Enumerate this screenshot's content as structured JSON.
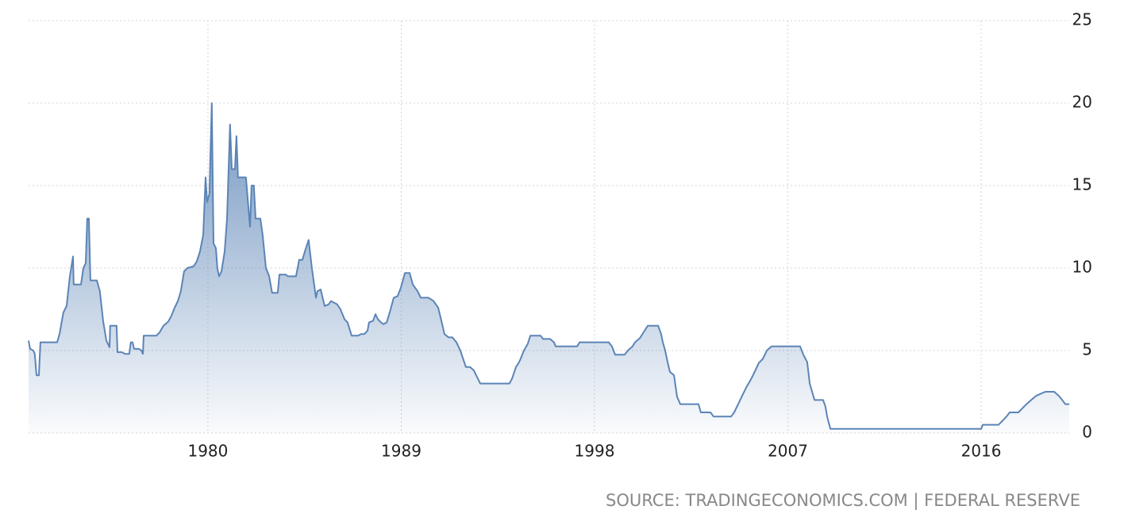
{
  "chart_data": {
    "type": "area",
    "source": "SOURCE: TRADINGECONOMICS.COM | FEDERAL RESERVE",
    "x": [
      1971.65,
      1971.72,
      1971.87,
      1971.94,
      1972.02,
      1972.13,
      1972.2,
      1972.98,
      1973.09,
      1973.27,
      1973.42,
      1973.57,
      1973.72,
      1973.75,
      1974.09,
      1974.2,
      1974.31,
      1974.38,
      1974.46,
      1974.53,
      1974.83,
      1974.97,
      1975.12,
      1975.27,
      1975.42,
      1975.45,
      1975.75,
      1975.79,
      1976.01,
      1976.12,
      1976.34,
      1976.41,
      1976.49,
      1976.56,
      1976.78,
      1976.9,
      1976.97,
      1977.01,
      1977.6,
      1977.75,
      1977.93,
      1978.15,
      1978.3,
      1978.45,
      1978.6,
      1978.74,
      1978.89,
      1979.04,
      1979.33,
      1979.48,
      1979.63,
      1979.78,
      1979.89,
      1979.96,
      1980.07,
      1980.18,
      1980.26,
      1980.37,
      1980.44,
      1980.52,
      1980.63,
      1980.78,
      1980.89,
      1981.03,
      1981.11,
      1981.26,
      1981.33,
      1981.4,
      1981.77,
      1981.96,
      1982.03,
      1982.14,
      1982.22,
      1982.44,
      1982.55,
      1982.7,
      1982.85,
      1982.99,
      1983.25,
      1983.33,
      1983.62,
      1983.73,
      1984.1,
      1984.25,
      1984.4,
      1984.51,
      1984.69,
      1984.84,
      1985.03,
      1985.1,
      1985.25,
      1985.43,
      1985.62,
      1985.73,
      1986.02,
      1986.17,
      1986.36,
      1986.5,
      1986.69,
      1986.99,
      1987.13,
      1987.28,
      1987.43,
      1987.5,
      1987.69,
      1987.8,
      1987.91,
      1988.06,
      1988.17,
      1988.32,
      1988.46,
      1988.65,
      1988.83,
      1988.98,
      1989.17,
      1989.39,
      1989.54,
      1989.76,
      1989.91,
      1990.27,
      1990.5,
      1990.72,
      1990.87,
      1991.01,
      1991.2,
      1991.38,
      1991.57,
      1991.75,
      1992.01,
      1992.2,
      1992.38,
      1992.49,
      1992.68,
      1994.04,
      1994.16,
      1994.34,
      1994.49,
      1994.56,
      1994.71,
      1994.89,
      1995.01,
      1995.49,
      1995.6,
      1995.93,
      1996.11,
      1996.19,
      1997.19,
      1997.3,
      1998.66,
      1998.81,
      1998.96,
      1999.4,
      1999.55,
      1999.77,
      1999.88,
      2000.11,
      2000.33,
      2000.48,
      2000.96,
      2001.1,
      2001.18,
      2001.29,
      2001.4,
      2001.51,
      2001.7,
      2001.84,
      2001.99,
      2002.84,
      2002.95,
      2003.4,
      2003.54,
      2004.36,
      2004.5,
      2004.69,
      2004.87,
      2005.06,
      2005.28,
      2005.47,
      2005.65,
      2005.84,
      2006.02,
      2006.24,
      2007.57,
      2007.72,
      2007.9,
      2008.02,
      2008.24,
      2008.64,
      2008.75,
      2008.83,
      2008.98,
      2016.0,
      2016.07,
      2016.81,
      2017.0,
      2017.18,
      2017.33,
      2017.73,
      2017.92,
      2018.11,
      2018.33,
      2018.55,
      2018.81,
      2018.99,
      2019.4,
      2019.62,
      2019.77,
      2019.92,
      2020.1
    ],
    "values": [
      5.6,
      5.1,
      5.0,
      4.8,
      3.5,
      3.5,
      5.5,
      5.5,
      6.0,
      7.3,
      7.7,
      9.5,
      10.7,
      9.0,
      9.0,
      10.0,
      10.3,
      13.0,
      13.0,
      9.25,
      9.25,
      8.6,
      6.8,
      5.6,
      5.2,
      6.5,
      6.5,
      4.9,
      4.9,
      4.8,
      4.8,
      5.5,
      5.5,
      5.1,
      5.1,
      5.0,
      4.8,
      5.9,
      5.9,
      6.1,
      6.5,
      6.75,
      7.1,
      7.6,
      8.0,
      8.6,
      9.8,
      10.0,
      10.1,
      10.4,
      11.0,
      12.0,
      15.5,
      14.0,
      14.5,
      20.0,
      11.5,
      11.2,
      10.0,
      9.5,
      9.8,
      11.0,
      13.0,
      18.7,
      16.0,
      16.0,
      18.0,
      15.5,
      15.5,
      12.5,
      15.0,
      15.0,
      13.0,
      13.0,
      12.0,
      10.0,
      9.5,
      8.5,
      8.5,
      9.6,
      9.6,
      9.5,
      9.5,
      10.5,
      10.5,
      11.0,
      11.7,
      10.0,
      8.2,
      8.6,
      8.7,
      7.7,
      7.8,
      8.0,
      7.8,
      7.5,
      6.9,
      6.7,
      5.9,
      5.9,
      6.0,
      6.0,
      6.2,
      6.7,
      6.8,
      7.2,
      6.9,
      6.7,
      6.6,
      6.7,
      7.3,
      8.2,
      8.3,
      8.8,
      9.7,
      9.7,
      9.0,
      8.6,
      8.2,
      8.2,
      8.0,
      7.6,
      6.8,
      6.0,
      5.8,
      5.8,
      5.5,
      5.0,
      4.0,
      4.0,
      3.8,
      3.5,
      3.0,
      3.0,
      3.3,
      4.0,
      4.3,
      4.5,
      5.0,
      5.4,
      5.9,
      5.9,
      5.7,
      5.7,
      5.5,
      5.25,
      5.25,
      5.5,
      5.5,
      5.25,
      4.75,
      4.75,
      5.0,
      5.25,
      5.5,
      5.75,
      6.2,
      6.5,
      6.5,
      6.0,
      5.5,
      5.0,
      4.3,
      3.7,
      3.5,
      2.2,
      1.75,
      1.75,
      1.25,
      1.25,
      1.0,
      1.0,
      1.25,
      1.75,
      2.25,
      2.75,
      3.25,
      3.75,
      4.25,
      4.5,
      5.0,
      5.25,
      5.25,
      4.75,
      4.3,
      3.0,
      2.0,
      2.0,
      1.6,
      1.0,
      0.25,
      0.25,
      0.5,
      0.5,
      0.75,
      1.0,
      1.25,
      1.25,
      1.5,
      1.75,
      2.0,
      2.25,
      2.4,
      2.5,
      2.5,
      2.25,
      2.0,
      1.75,
      1.75
    ],
    "color": "#5b84b6",
    "xlim": [
      1971.65,
      2020.1
    ],
    "xticks": [
      1980,
      1989,
      1998,
      2007,
      2016
    ],
    "ylim": [
      0,
      25
    ],
    "yticks": [
      0,
      5,
      10,
      15,
      20,
      25
    ],
    "grid": true
  }
}
